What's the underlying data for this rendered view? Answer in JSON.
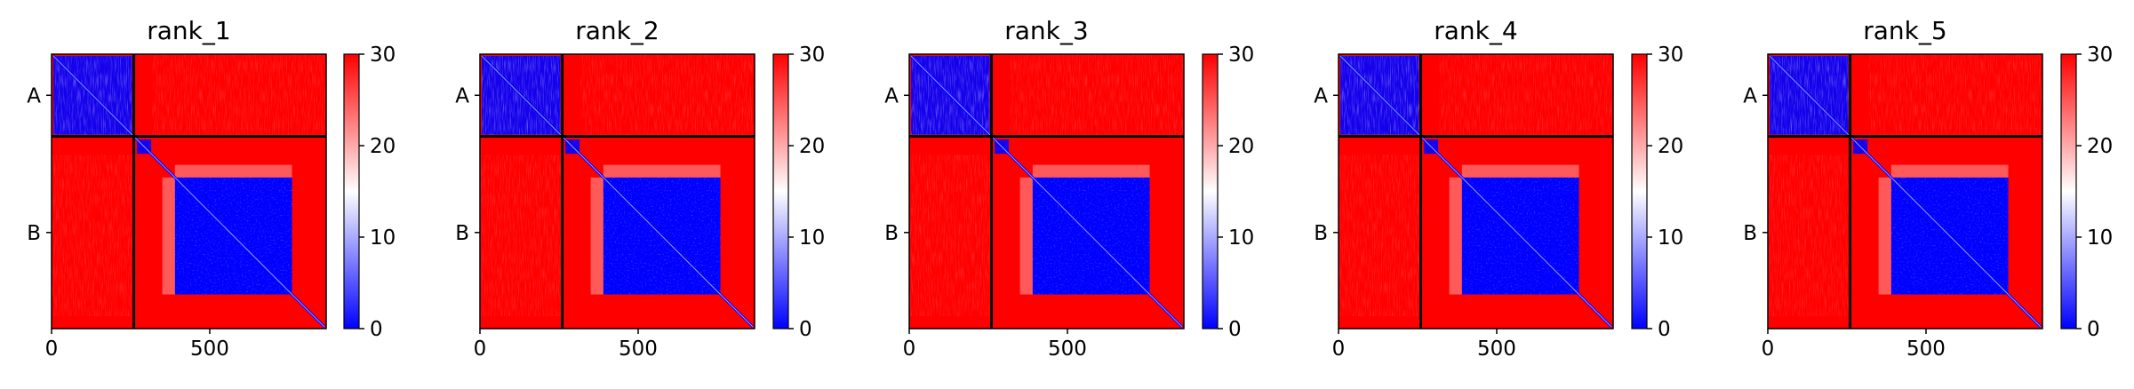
{
  "chart_data": [
    {
      "type": "heatmap",
      "title": "rank_1",
      "row_tick_labels": [
        "A",
        "B"
      ],
      "x_tick_labels": [
        "0",
        "500"
      ],
      "x_ticks": [
        0,
        500
      ],
      "xlim": [
        0,
        868
      ],
      "chain_boundary": 260,
      "colorbar": {
        "ticks": [
          0,
          10,
          20,
          30
        ],
        "range": [
          0,
          30
        ],
        "colormap": "bwr"
      },
      "colors": {
        "low": "#0000ff",
        "mid": "#ffffff",
        "high": "#ff0000"
      }
    },
    {
      "type": "heatmap",
      "title": "rank_2",
      "row_tick_labels": [
        "A",
        "B"
      ],
      "x_tick_labels": [
        "0",
        "500"
      ],
      "x_ticks": [
        0,
        500
      ],
      "xlim": [
        0,
        868
      ],
      "chain_boundary": 260,
      "colorbar": {
        "ticks": [
          0,
          10,
          20,
          30
        ],
        "range": [
          0,
          30
        ],
        "colormap": "bwr"
      },
      "colors": {
        "low": "#0000ff",
        "mid": "#ffffff",
        "high": "#ff0000"
      }
    },
    {
      "type": "heatmap",
      "title": "rank_3",
      "row_tick_labels": [
        "A",
        "B"
      ],
      "x_tick_labels": [
        "0",
        "500"
      ],
      "x_ticks": [
        0,
        500
      ],
      "xlim": [
        0,
        868
      ],
      "chain_boundary": 260,
      "colorbar": {
        "ticks": [
          0,
          10,
          20,
          30
        ],
        "range": [
          0,
          30
        ],
        "colormap": "bwr"
      },
      "colors": {
        "low": "#0000ff",
        "mid": "#ffffff",
        "high": "#ff0000"
      }
    },
    {
      "type": "heatmap",
      "title": "rank_4",
      "row_tick_labels": [
        "A",
        "B"
      ],
      "x_tick_labels": [
        "0",
        "500"
      ],
      "x_ticks": [
        0,
        500
      ],
      "xlim": [
        0,
        868
      ],
      "chain_boundary": 260,
      "colorbar": {
        "ticks": [
          0,
          10,
          20,
          30
        ],
        "range": [
          0,
          30
        ],
        "colormap": "bwr"
      },
      "colors": {
        "low": "#0000ff",
        "mid": "#ffffff",
        "high": "#ff0000"
      }
    },
    {
      "type": "heatmap",
      "title": "rank_5",
      "row_tick_labels": [
        "A",
        "B"
      ],
      "x_tick_labels": [
        "0",
        "500"
      ],
      "x_ticks": [
        0,
        500
      ],
      "xlim": [
        0,
        868
      ],
      "chain_boundary": 260,
      "colorbar": {
        "ticks": [
          0,
          10,
          20,
          30
        ],
        "range": [
          0,
          30
        ],
        "colormap": "bwr"
      },
      "colors": {
        "low": "#0000ff",
        "mid": "#ffffff",
        "high": "#ff0000"
      }
    }
  ]
}
